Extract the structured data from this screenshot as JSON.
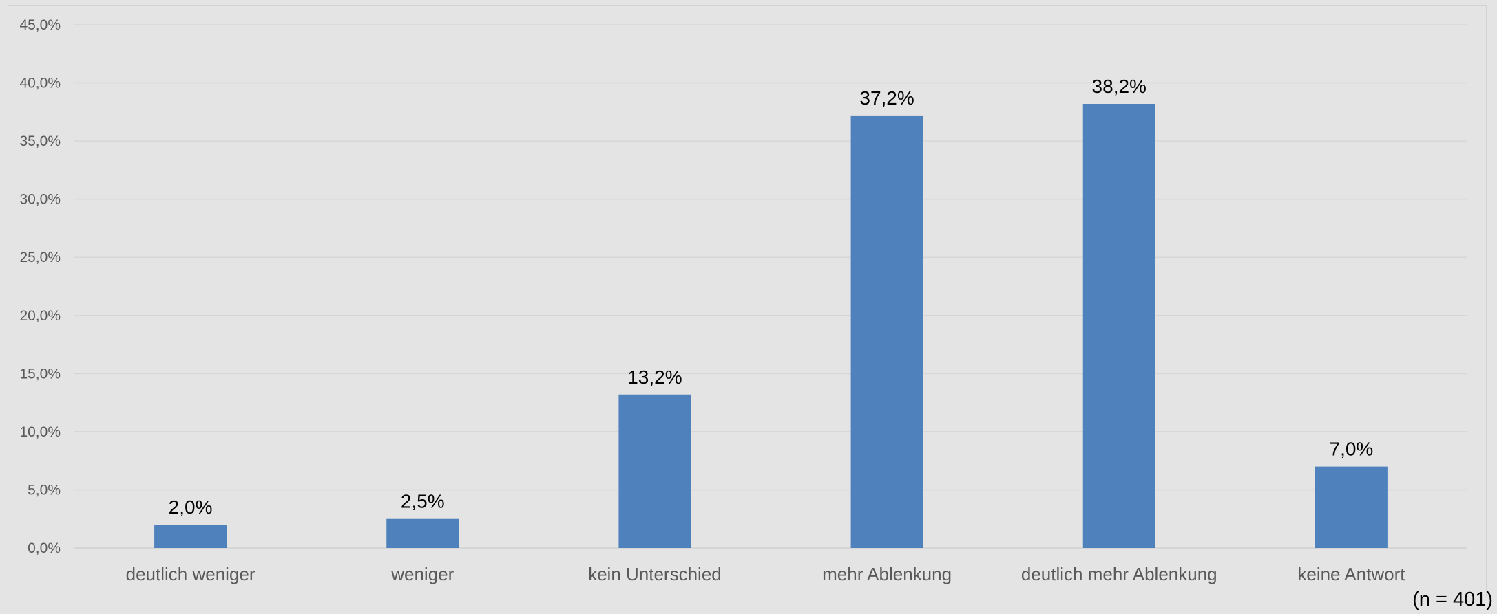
{
  "chart_data": {
    "type": "bar",
    "categories": [
      "deutlich weniger",
      "weniger",
      "kein Unterschied",
      "mehr Ablenkung",
      "deutlich mehr Ablenkung",
      "keine Antwort"
    ],
    "values": [
      2.0,
      2.5,
      13.2,
      37.2,
      38.2,
      7.0
    ],
    "data_labels": [
      "2,0%",
      "2,5%",
      "13,2%",
      "37,2%",
      "38,2%",
      "7,0%"
    ],
    "y_ticks": [
      0,
      5,
      10,
      15,
      20,
      25,
      30,
      35,
      40,
      45
    ],
    "y_tick_labels": [
      "0,0%",
      "5,0%",
      "10,0%",
      "15,0%",
      "20,0%",
      "25,0%",
      "30,0%",
      "35,0%",
      "40,0%",
      "45,0%"
    ],
    "ylim": [
      0,
      45
    ],
    "title": "",
    "xlabel": "",
    "ylabel": "",
    "grid": true,
    "legend": "none",
    "bar_color": "#4f81bd",
    "footnote": "(n = 401)"
  }
}
